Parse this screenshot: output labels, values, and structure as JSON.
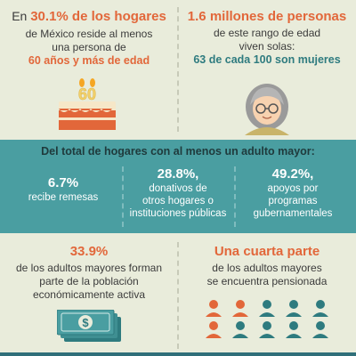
{
  "top_left": {
    "line1_prefix": "En ",
    "line1_highlight": "30.1% de los hogares",
    "line2": "de México reside al menos",
    "line3": "una persona de",
    "line4": "60 años y más de edad",
    "cake_number": "60"
  },
  "top_right": {
    "line1": "1.6 millones de personas",
    "line2": "de este rango de edad",
    "line3": "viven solas:",
    "line4": "63 de cada 100 son mujeres"
  },
  "band": {
    "title": "Del total de hogares con al menos un adulto mayor:",
    "columns": [
      {
        "pct": "6.7%",
        "text_lines": [
          "recibe remesas"
        ]
      },
      {
        "pct": "28.8%,",
        "text_lines": [
          "donativos de",
          "otros hogares o",
          "instituciones públicas"
        ]
      },
      {
        "pct": "49.2%,",
        "text_lines": [
          "apoyos por",
          "programas",
          "gubernamentales"
        ]
      }
    ]
  },
  "bottom_left": {
    "pct": "33.9%",
    "line1": "de los adultos mayores forman",
    "line2": "parte de la población",
    "line3": "económicamente activa",
    "money_symbol": "$"
  },
  "bottom_right": {
    "headline": "Una cuarta parte",
    "line1": "de los adultos mayores",
    "line2": "se encuentra pensionada"
  },
  "colors": {
    "background": "#e9ecdb",
    "accent_orange": "#e2673a",
    "teal_band": "#4a9ea1",
    "dark_teal": "#2e7b7f",
    "person_orange": "#e2673a",
    "person_teal": "#2e7b7f"
  },
  "icons": [
    "birthday-cake-icon",
    "elderly-woman-icon",
    "money-bills-icon",
    "people-grid-icon"
  ]
}
